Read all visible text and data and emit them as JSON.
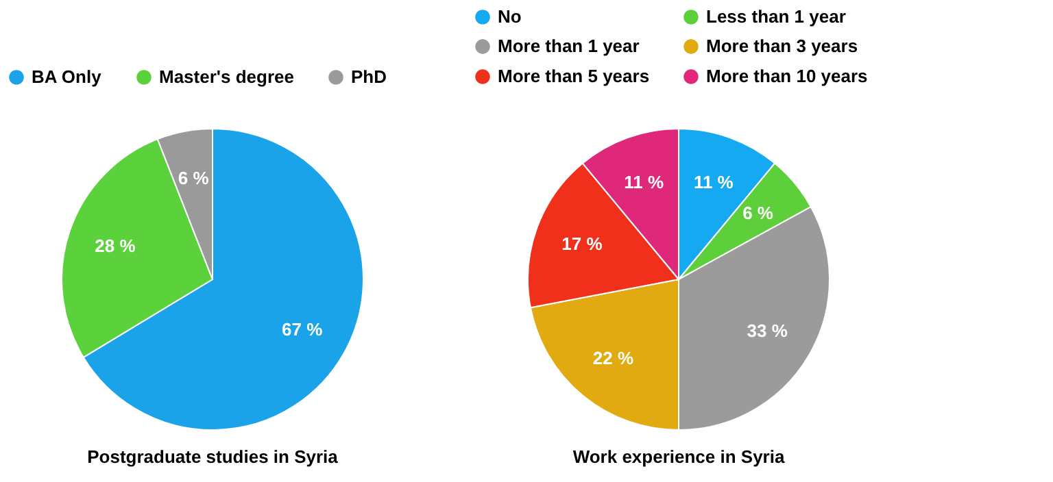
{
  "chart_data": [
    {
      "type": "pie",
      "title": "Postgraduate studies in Syria",
      "categories": [
        "BA Only",
        "Master's degree",
        "PhD"
      ],
      "values": [
        67,
        28,
        6
      ],
      "value_labels": [
        "67 %",
        "28 %",
        "6 %"
      ],
      "colors": [
        "#1aa3e8",
        "#5bd23c",
        "#9a9a9a"
      ],
      "legend": "top"
    },
    {
      "type": "pie",
      "title": "Work experience in Syria",
      "categories": [
        "No",
        "Less than 1 year",
        "More than 1 year",
        "More than 3 years",
        "More than 5 years",
        "More than 10 years"
      ],
      "values": [
        11,
        6,
        33,
        22,
        17,
        11
      ],
      "value_labels": [
        "11 %",
        "6 %",
        "33 %",
        "22 %",
        "17 %",
        "11 %"
      ],
      "colors": [
        "#14a9f0",
        "#5ccf3a",
        "#9b9b9b",
        "#e0aa10",
        "#f0301a",
        "#e0287a"
      ],
      "legend": "top"
    }
  ]
}
